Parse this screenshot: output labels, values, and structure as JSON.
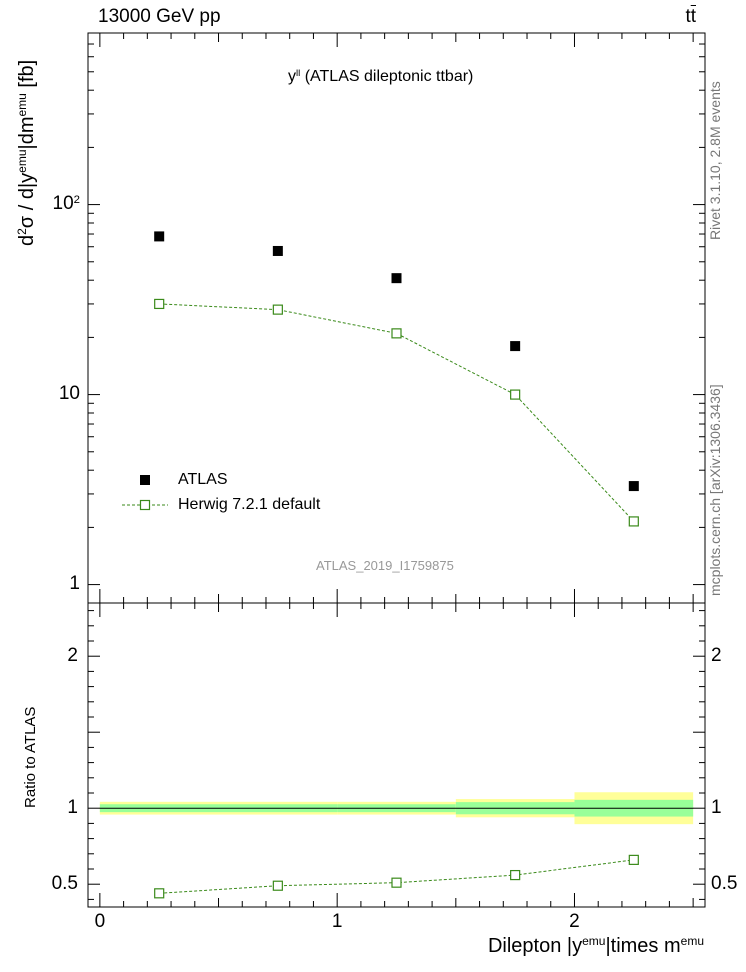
{
  "header": {
    "energy_label": "13000 GeV pp",
    "process_label": "tt"
  },
  "side_labels": {
    "rivet": "Rivet 3.1.10, 2.8M events",
    "mcplots": "mcplots.cern.ch [arXiv:1306.3436]"
  },
  "chart_data": [
    {
      "type": "scatter",
      "title": "(ATLAS dileptonic ttbar)",
      "title_sym": "y",
      "title_sup": "ll",
      "watermark": "ATLAS_2019_I1759875",
      "ylabel": {
        "p1": "d",
        "s1": "2",
        "p2": "σ / d|y",
        "s2": "emu",
        "p3": "|dm",
        "s3": "emu",
        "p4": " [fb]"
      },
      "yscale": "log",
      "ylim": [
        0.8,
        800
      ],
      "xlim": [
        -0.05,
        2.55
      ],
      "yticks": [
        {
          "value": 1,
          "label": "1"
        },
        {
          "value": 10,
          "label": "10"
        },
        {
          "value": 100,
          "label": "10",
          "sup": "2"
        }
      ],
      "legend": {
        "position": "bottom-left",
        "entries": [
          "ATLAS",
          "Herwig 7.2.1 default"
        ]
      },
      "series": [
        {
          "name": "ATLAS",
          "marker": "filled-square",
          "color": "#000000",
          "x": [
            0.25,
            0.75,
            1.25,
            1.75,
            2.25
          ],
          "y": [
            68,
            57,
            41,
            18,
            3.3
          ]
        },
        {
          "name": "Herwig 7.2.1 default",
          "marker": "open-square",
          "line": "dashed",
          "color": "#3a8a1a",
          "x": [
            0.25,
            0.75,
            1.25,
            1.75,
            2.25
          ],
          "y": [
            30,
            28,
            21,
            10,
            2.15
          ]
        }
      ]
    },
    {
      "type": "scatter",
      "ylabel": "Ratio to ATLAS",
      "xlabel": {
        "p1": "Dilepton |y",
        "s1": "emu",
        "p2": "|times m",
        "s2": "emu"
      },
      "xlim": [
        -0.05,
        2.55
      ],
      "ylim": [
        0.35,
        2.35
      ],
      "yticks": [
        {
          "value": 0.5,
          "label": "0.5"
        },
        {
          "value": 1,
          "label": "1"
        },
        {
          "value": 2,
          "label": "2"
        }
      ],
      "xticks": [
        {
          "value": 0,
          "label": "0"
        },
        {
          "value": 1,
          "label": "1"
        },
        {
          "value": 2,
          "label": "2"
        }
      ],
      "bands": {
        "bins": [
          [
            0,
            0.5
          ],
          [
            0.5,
            1
          ],
          [
            1,
            1.5
          ],
          [
            1.5,
            2
          ],
          [
            2,
            2.5
          ]
        ],
        "stat": [
          0.026,
          0.026,
          0.026,
          0.04,
          0.055
        ],
        "total": [
          0.042,
          0.042,
          0.042,
          0.06,
          0.105
        ],
        "stat_color": "#99ff99",
        "total_color": "#ffff99"
      },
      "series": [
        {
          "name": "Herwig 7.2.1 default",
          "marker": "open-square",
          "line": "dashed",
          "color": "#3a8a1a",
          "x": [
            0.25,
            0.75,
            1.25,
            1.75,
            2.25
          ],
          "y": [
            0.44,
            0.49,
            0.51,
            0.56,
            0.66
          ],
          "err": [
            0,
            0,
            0,
            0,
            0.03
          ]
        }
      ]
    }
  ]
}
